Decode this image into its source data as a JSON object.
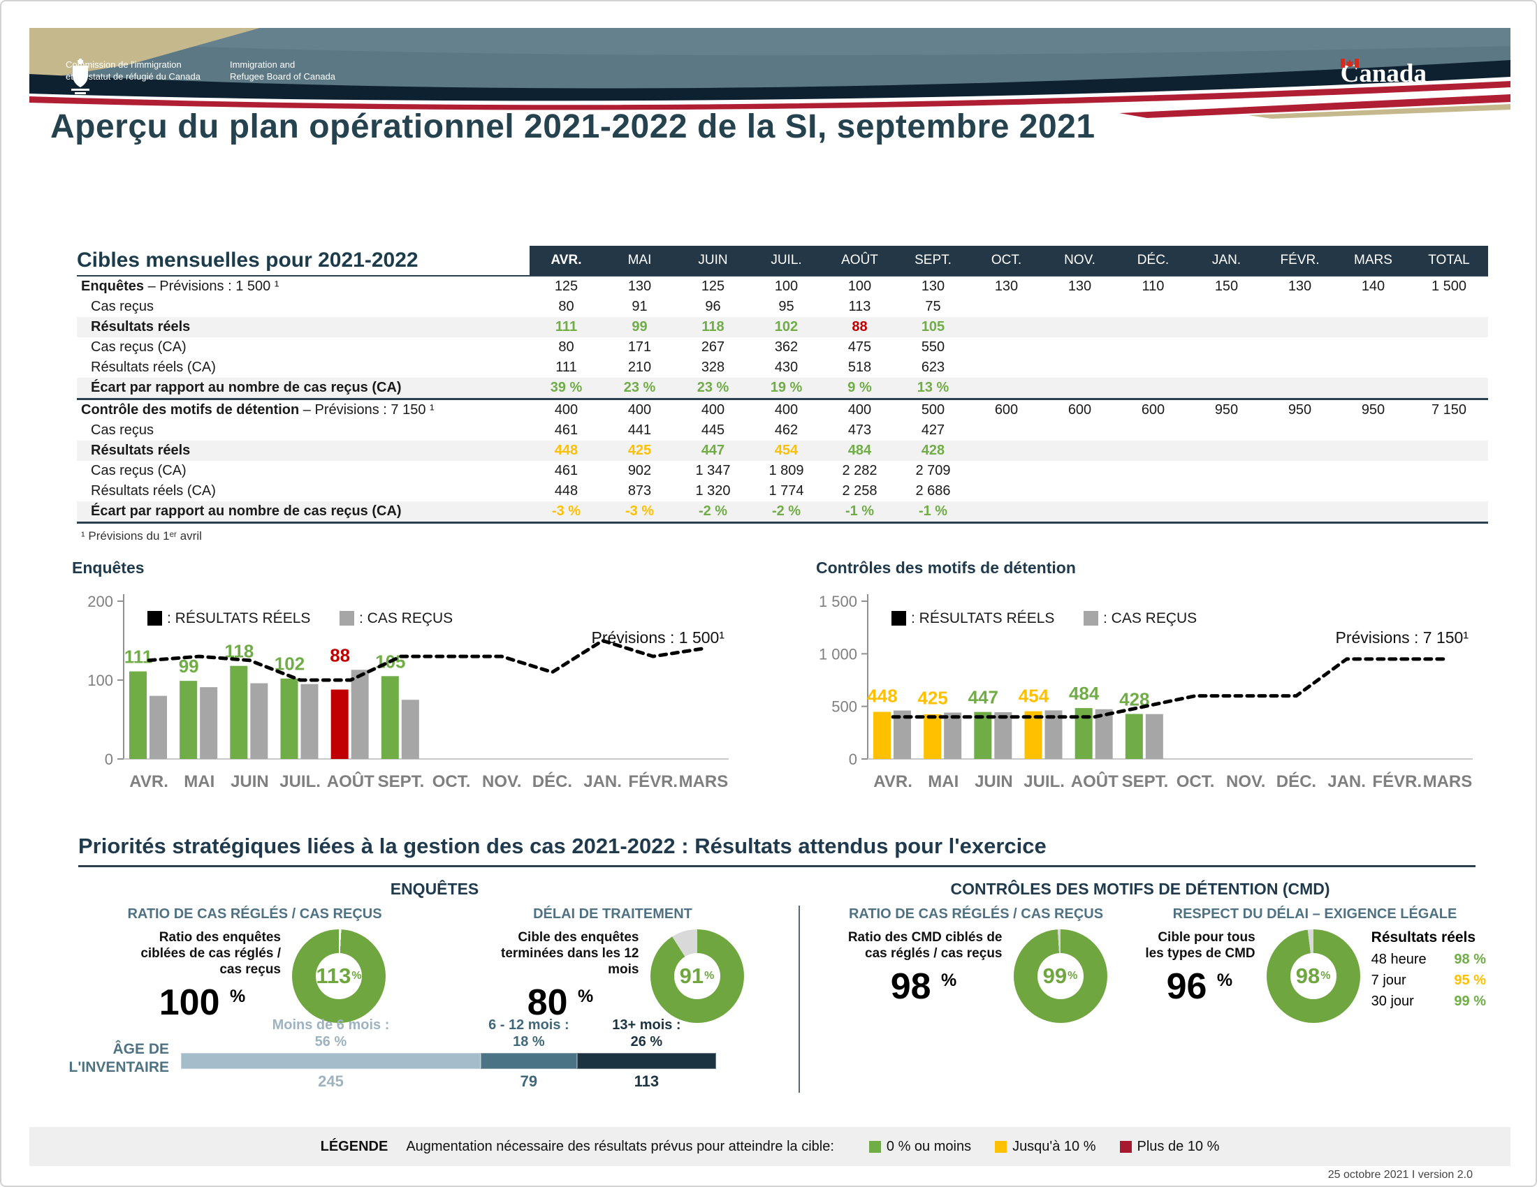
{
  "banner": {
    "org_fr_line1": "Commission de l'immigration",
    "org_fr_line2": "et du statut de réfugié du Canada",
    "org_en_line1": "Immigration and",
    "org_en_line2": "Refugee Board of Canada",
    "wordmark": "Canada"
  },
  "title": "Aperçu du plan opérationnel 2021-2022 de la SI, septembre 2021",
  "table": {
    "title": "Cibles mensuelles pour 2021-2022",
    "months": [
      "AVR.",
      "MAI",
      "JUIN",
      "JUIL.",
      "AOÛT",
      "SEPT.",
      "OCT.",
      "NOV.",
      "DÉC.",
      "JAN.",
      "FÉVR.",
      "MARS",
      "TOTAL"
    ],
    "rows": [
      {
        "kind": "head",
        "label_b": "Enquêtes",
        "label_r": " – Prévisions : 1 500 ¹",
        "v": [
          "125",
          "130",
          "125",
          "100",
          "100",
          "130",
          "130",
          "130",
          "110",
          "150",
          "130",
          "140",
          "1 500"
        ]
      },
      {
        "kind": "sub",
        "label_b": "",
        "label_r": "Cas reçus",
        "v": [
          "80",
          "91",
          "96",
          "95",
          "113",
          "75",
          "",
          "",
          "",
          "",
          "",
          "",
          ""
        ]
      },
      {
        "kind": "bold",
        "label_b": "Résultats réels",
        "label_r": "",
        "v": [
          "111",
          "99",
          "118",
          "102",
          "88",
          "105",
          "",
          "",
          "",
          "",
          "",
          "",
          ""
        ],
        "s": [
          "g",
          "g",
          "g",
          "g",
          "r",
          "g",
          "",
          "",
          "",
          "",
          "",
          "",
          ""
        ]
      },
      {
        "kind": "sub",
        "label_b": "",
        "label_r": "Cas reçus (CA)",
        "v": [
          "80",
          "171",
          "267",
          "362",
          "475",
          "550",
          "",
          "",
          "",
          "",
          "",
          "",
          ""
        ]
      },
      {
        "kind": "sub",
        "label_b": "",
        "label_r": "Résultats réels (CA)",
        "v": [
          "111",
          "210",
          "328",
          "430",
          "518",
          "623",
          "",
          "",
          "",
          "",
          "",
          "",
          ""
        ]
      },
      {
        "kind": "ecart",
        "label_b": "Écart par rapport au nombre de cas reçus (CA)",
        "label_r": "",
        "v": [
          "39 %",
          "23 %",
          "23 %",
          "19 %",
          "9 %",
          "13 %",
          "",
          "",
          "",
          "",
          "",
          "",
          ""
        ],
        "s": [
          "g",
          "g",
          "g",
          "g",
          "g",
          "g",
          "",
          "",
          "",
          "",
          "",
          "",
          ""
        ]
      },
      {
        "kind": "head",
        "label_b": "Contrôle des motifs de détention",
        "label_r": " – Prévisions : 7 150 ¹",
        "v": [
          "400",
          "400",
          "400",
          "400",
          "400",
          "500",
          "600",
          "600",
          "600",
          "950",
          "950",
          "950",
          "7 150"
        ]
      },
      {
        "kind": "sub",
        "label_b": "",
        "label_r": "Cas reçus",
        "v": [
          "461",
          "441",
          "445",
          "462",
          "473",
          "427",
          "",
          "",
          "",
          "",
          "",
          "",
          ""
        ]
      },
      {
        "kind": "bold",
        "label_b": "Résultats réels",
        "label_r": "",
        "v": [
          "448",
          "425",
          "447",
          "454",
          "484",
          "428",
          "",
          "",
          "",
          "",
          "",
          "",
          ""
        ],
        "s": [
          "y",
          "y",
          "g",
          "y",
          "g",
          "g",
          "",
          "",
          "",
          "",
          "",
          "",
          ""
        ]
      },
      {
        "kind": "sub",
        "label_b": "",
        "label_r": "Cas reçus (CA)",
        "v": [
          "461",
          "902",
          "1 347",
          "1 809",
          "2 282",
          "2 709",
          "",
          "",
          "",
          "",
          "",
          "",
          ""
        ]
      },
      {
        "kind": "sub",
        "label_b": "",
        "label_r": "Résultats réels (CA)",
        "v": [
          "448",
          "873",
          "1 320",
          "1 774",
          "2 258",
          "2 686",
          "",
          "",
          "",
          "",
          "",
          "",
          ""
        ]
      },
      {
        "kind": "ecart",
        "label_b": "Écart par rapport au nombre de cas reçus (CA)",
        "label_r": "",
        "v": [
          "-3 %",
          "-3 %",
          "-2 %",
          "-2 %",
          "-1 %",
          "-1 %",
          "",
          "",
          "",
          "",
          "",
          "",
          ""
        ],
        "s": [
          "y",
          "y",
          "g",
          "g",
          "g",
          "g",
          "",
          "",
          "",
          "",
          "",
          "",
          ""
        ]
      }
    ],
    "footnote": "¹  Prévisions du 1ᵉʳ avril"
  },
  "chart_data": [
    {
      "type": "bar",
      "title": "Enquêtes",
      "categories": [
        "AVR.",
        "MAI",
        "JUIN",
        "JUIL.",
        "AOÛT",
        "SEPT.",
        "OCT.",
        "NOV.",
        "DÉC.",
        "JAN.",
        "FÉVR.",
        "MARS"
      ],
      "ylim": [
        0,
        200
      ],
      "yticks": [
        0,
        100,
        200
      ],
      "ytick_labels": [
        "0",
        "100",
        "200"
      ],
      "legend": [
        {
          "swatch": "#000000",
          "label": ": RÉSULTATS RÉELS"
        },
        {
          "swatch": "#A6A6A6",
          "label": ": CAS REÇUS"
        }
      ],
      "annotation": "Prévisions : 1 500¹",
      "series": [
        {
          "name": "RÉSULTATS RÉELS",
          "role": "bar",
          "values": [
            111,
            99,
            118,
            102,
            88,
            105,
            null,
            null,
            null,
            null,
            null,
            null
          ],
          "colors": [
            "#70AD47",
            "#70AD47",
            "#70AD47",
            "#70AD47",
            "#C00000",
            "#70AD47"
          ]
        },
        {
          "name": "CAS REÇUS",
          "role": "bar",
          "values": [
            80,
            91,
            96,
            95,
            113,
            75,
            null,
            null,
            null,
            null,
            null,
            null
          ],
          "color": "#A6A6A6"
        },
        {
          "name": "PRÉVISIONS",
          "role": "dashed-line",
          "color": "#000000",
          "values": [
            125,
            130,
            125,
            100,
            100,
            130,
            130,
            130,
            110,
            150,
            130,
            140
          ]
        }
      ]
    },
    {
      "type": "bar",
      "title": "Contrôles  des motifs de détention",
      "categories": [
        "AVR.",
        "MAI",
        "JUIN",
        "JUIL.",
        "AOÛT",
        "SEPT.",
        "OCT.",
        "NOV.",
        "DÉC.",
        "JAN.",
        "FÉVR.",
        "MARS"
      ],
      "ylim": [
        0,
        1500
      ],
      "yticks": [
        0,
        500,
        1000,
        1500
      ],
      "ytick_labels": [
        "0",
        "500",
        "1 000",
        "1 500"
      ],
      "legend": [
        {
          "swatch": "#000000",
          "label": ": RÉSULTATS RÉELS"
        },
        {
          "swatch": "#A6A6A6",
          "label": ": CAS REÇUS"
        }
      ],
      "annotation": "Prévisions : 7 150¹",
      "series": [
        {
          "name": "RÉSULTATS RÉELS",
          "role": "bar",
          "values": [
            448,
            425,
            447,
            454,
            484,
            428,
            null,
            null,
            null,
            null,
            null,
            null
          ],
          "colors": [
            "#FFC000",
            "#FFC000",
            "#70AD47",
            "#FFC000",
            "#70AD47",
            "#70AD47"
          ]
        },
        {
          "name": "CAS REÇUS",
          "role": "bar",
          "values": [
            461,
            441,
            445,
            462,
            473,
            427,
            null,
            null,
            null,
            null,
            null,
            null
          ],
          "color": "#A6A6A6"
        },
        {
          "name": "PRÉVISIONS",
          "role": "dashed-line",
          "color": "#000000",
          "values": [
            400,
            400,
            400,
            400,
            400,
            500,
            600,
            600,
            600,
            950,
            950,
            950
          ]
        }
      ]
    }
  ],
  "priorities": {
    "title": "Priorités stratégiques liées à la gestion des cas 2021-2022 : Résultats attendus pour l'exercice",
    "group_enquetes": "ENQUÊTES",
    "group_cmd": "CONTRÔLES DES MOTIFS DE DÉTENTION (CMD)",
    "kpi1": {
      "heading": "RATIO DE CAS RÉGLÉS / CAS REÇUS",
      "desc": "Ratio des enquêtes ciblées de cas réglés / cas reçus",
      "target": "100",
      "unit": "%",
      "donut_pct": 113,
      "donut_label": "113",
      "donut_unit": "%"
    },
    "kpi2": {
      "heading": "DÉLAI DE TRAITEMENT",
      "desc": "Cible des enquêtes terminées dans les 12 mois",
      "target": "80",
      "unit": "%",
      "donut_pct": 91,
      "donut_label": "91",
      "donut_unit": "%"
    },
    "kpi3": {
      "heading": "RATIO DE CAS RÉGLÉS / CAS REÇUS",
      "desc": "Ratio des CMD ciblés de cas réglés / cas reçus",
      "target": "98",
      "unit": "%",
      "donut_pct": 99,
      "donut_label": "99",
      "donut_unit": "%"
    },
    "kpi4": {
      "heading": "RESPECT DU DÉLAI – EXIGENCE LÉGALE",
      "desc": "Cible pour tous les types de CMD",
      "target": "96",
      "unit": "%",
      "donut_pct": 98,
      "donut_label": "98",
      "donut_unit": "%",
      "results_header": "Résultats réels",
      "results": [
        {
          "label": "48 heure",
          "value": "98 %",
          "color": "#70AD47"
        },
        {
          "label": "7 jour",
          "value": "95 %",
          "color": "#FFC000"
        },
        {
          "label": "30 jour",
          "value": "99 %",
          "color": "#70AD47"
        }
      ]
    }
  },
  "age_inventory": {
    "label_line1": "ÂGE DE",
    "label_line2": "L'INVENTAIRE",
    "segments": [
      {
        "title": "Moins de 6 mois :",
        "pct": "56 %",
        "share": 56,
        "count": "245",
        "bar_color": "#A4BDCA",
        "text_color": "#9DB3C0"
      },
      {
        "title": "6 - 12 mois :",
        "pct": "18 %",
        "share": 18,
        "count": "79",
        "bar_color": "#4A7385",
        "text_color": "#41687A"
      },
      {
        "title": "13+ mois :",
        "pct": "26 %",
        "share": 26,
        "count": "113",
        "bar_color": "#1C3442",
        "text_color": "#1C3442"
      }
    ]
  },
  "legend": {
    "title": "LÉGENDE",
    "text": "Augmentation nécessaire des résultats prévus pour atteindre la cible:",
    "items": [
      {
        "label": "0 % ou moins",
        "color": "#70AD47"
      },
      {
        "label": "Jusqu'à 10 %",
        "color": "#FFC000"
      },
      {
        "label": "Plus de 10 %",
        "color": "#A6192E"
      }
    ]
  },
  "footer": "25 octobre 2021 I version 2.0",
  "colors": {
    "green": "#70AD47",
    "yellow": "#FFC000",
    "red": "#C00000",
    "gray_bar": "#A6A6A6",
    "header_bg": "#243746",
    "heading": "#1F3A4C",
    "steel": "#4F7283"
  }
}
